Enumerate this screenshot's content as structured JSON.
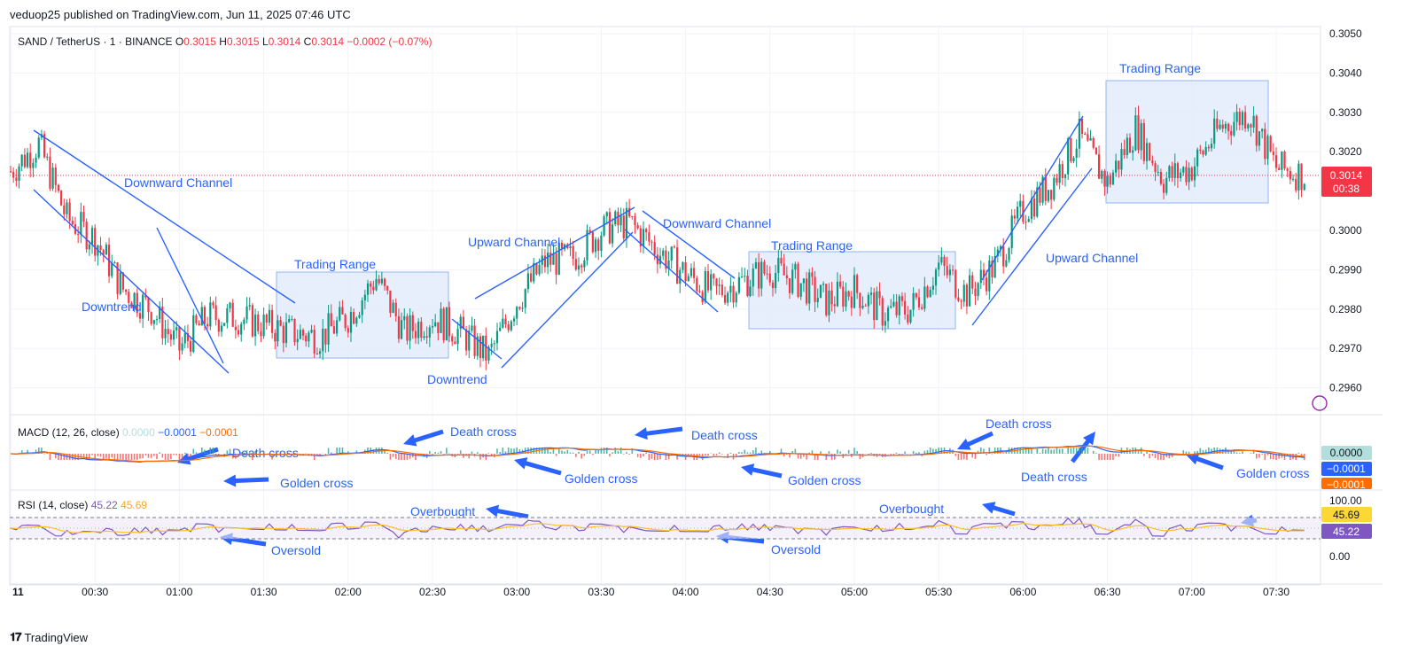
{
  "header": {
    "publisher_line": "veduop25 published on TradingView.com, Jun 11, 2025 07:46 UTC"
  },
  "symbol_line": {
    "name": "SAND / TetherUS · 1 · BINANCE",
    "o_label": "O",
    "o_value": "0.3015",
    "h_label": "H",
    "h_value": "0.3015",
    "l_label": "L",
    "l_value": "0.3014",
    "c_label": "C",
    "c_value": "0.3014",
    "change": "−0.0002 (−0.07%)"
  },
  "price_badge": {
    "price": "0.3014",
    "countdown": "00:38"
  },
  "macd": {
    "label": "MACD (12, 26, close)",
    "hist": "0.0000",
    "macd": "−0.0001",
    "signal": "−0.0001",
    "badge_hist": "0.0000",
    "badge_macd": "−0.0001",
    "badge_signal": "−0.0001"
  },
  "rsi": {
    "label": "RSI (14, close)",
    "rsi": "45.22",
    "ma": "45.69",
    "badge_ma": "45.69",
    "badge_rsi": "45.22",
    "upper": 70,
    "lower": 30
  },
  "annotations": {
    "downward_channel_1": "Downward Channel",
    "downtrend_1": "Downtrend",
    "trading_range_1": "Trading Range",
    "downtrend_2": "Downtrend",
    "upward_channel_1": "Upward Channel",
    "downward_channel_2": "Downward Channel",
    "trading_range_2": "Trading Range",
    "upward_channel_2": "Upward Channel",
    "trading_range_3": "Trading Range",
    "death_cross_1": "Death cross",
    "golden_cross_1": "Golden cross",
    "death_cross_2": "Death cross",
    "golden_cross_2": "Golden cross",
    "death_cross_3": "Death cross",
    "golden_cross_3": "Golden cross",
    "death_cross_4": "Death cross",
    "death_cross_5": "Death cross",
    "golden_cross_4": "Golden cross",
    "overbought_1": "Overbought",
    "overbought_2": "Overbought",
    "oversold_1": "Oversold",
    "oversold_2": "Oversold"
  },
  "footer": {
    "brand": "TradingView"
  },
  "colors": {
    "up": "#089981",
    "down": "#f23645",
    "annot": "#2962ff",
    "box_fill": "#e3ecfb",
    "box_stroke": "#90b4f0",
    "macd_line": "#2962ff",
    "signal_line": "#ff6d00",
    "rsi_line": "#7e57c2",
    "rsi_ma": "#fbc02d"
  },
  "chart_data": {
    "type": "candlestick",
    "price_axis": {
      "ticks": [
        "0.3050",
        "0.3040",
        "0.3030",
        "0.3020",
        "0.3010",
        "0.3000",
        "0.2990",
        "0.2980",
        "0.2970",
        "0.2960"
      ],
      "ylim": [
        0.2953,
        0.3053
      ]
    },
    "time_axis": {
      "ticks": [
        "11",
        "00:30",
        "01:00",
        "01:30",
        "02:00",
        "02:30",
        "03:00",
        "03:30",
        "04:00",
        "04:30",
        "05:00",
        "05:30",
        "06:00",
        "06:30",
        "07:00",
        "07:30"
      ]
    },
    "rsi_axis": {
      "ticks": [
        "100.00",
        "0.00"
      ]
    },
    "last_price": 0.3014,
    "ohlc_last": {
      "open": 0.3015,
      "high": 0.3015,
      "low": 0.3014,
      "close": 0.3014
    },
    "price_path": [
      [
        "00:00",
        0.3015
      ],
      [
        "00:10",
        0.3022
      ],
      [
        "00:20",
        0.3003
      ],
      [
        "00:30",
        0.2998
      ],
      [
        "00:40",
        0.2985
      ],
      [
        "00:50",
        0.298
      ],
      [
        "01:00",
        0.297
      ],
      [
        "01:10",
        0.2978
      ],
      [
        "01:20",
        0.2978
      ],
      [
        "01:30",
        0.2976
      ],
      [
        "01:40",
        0.2974
      ],
      [
        "01:50",
        0.2973
      ],
      [
        "02:00",
        0.2978
      ],
      [
        "02:10",
        0.2988
      ],
      [
        "02:20",
        0.2974
      ],
      [
        "02:30",
        0.2978
      ],
      [
        "02:40",
        0.2974
      ],
      [
        "02:50",
        0.2968
      ],
      [
        "03:00",
        0.2982
      ],
      [
        "03:10",
        0.2992
      ],
      [
        "03:20",
        0.2993
      ],
      [
        "03:30",
        0.3
      ],
      [
        "03:40",
        0.3002
      ],
      [
        "03:50",
        0.2995
      ],
      [
        "04:00",
        0.2989
      ],
      [
        "04:10",
        0.2984
      ],
      [
        "04:20",
        0.2987
      ],
      [
        "04:30",
        0.299
      ],
      [
        "04:40",
        0.2987
      ],
      [
        "04:50",
        0.2982
      ],
      [
        "05:00",
        0.2985
      ],
      [
        "05:10",
        0.2979
      ],
      [
        "05:20",
        0.298
      ],
      [
        "05:30",
        0.2991
      ],
      [
        "05:40",
        0.2984
      ],
      [
        "05:50",
        0.2991
      ],
      [
        "06:00",
        0.3005
      ],
      [
        "06:10",
        0.3012
      ],
      [
        "06:20",
        0.3024
      ],
      [
        "06:30",
        0.3012
      ],
      [
        "06:40",
        0.3026
      ],
      [
        "06:50",
        0.3013
      ],
      [
        "07:00",
        0.3016
      ],
      [
        "07:10",
        0.3026
      ],
      [
        "07:20",
        0.303
      ],
      [
        "07:30",
        0.3016
      ],
      [
        "07:40",
        0.3014
      ]
    ],
    "grid": true
  }
}
